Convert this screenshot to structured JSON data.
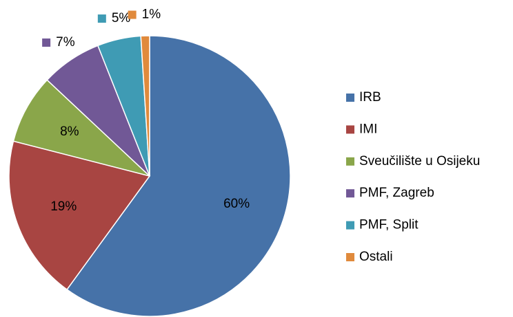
{
  "chart_data": {
    "type": "pie",
    "categories": [
      "IRB",
      "IMI",
      "Sveučilište u Osijeku",
      "PMF, Zagreb",
      "PMF, Split",
      "Ostali"
    ],
    "values": [
      60,
      19,
      8,
      7,
      5,
      1
    ],
    "value_labels": [
      "60%",
      "19%",
      "8%",
      "7%",
      "5%",
      "1%"
    ],
    "colors": [
      "#4672a8",
      "#a84542",
      "#8aa64a",
      "#715896",
      "#3f9bb4",
      "#e08a3c"
    ],
    "legend": "right"
  }
}
